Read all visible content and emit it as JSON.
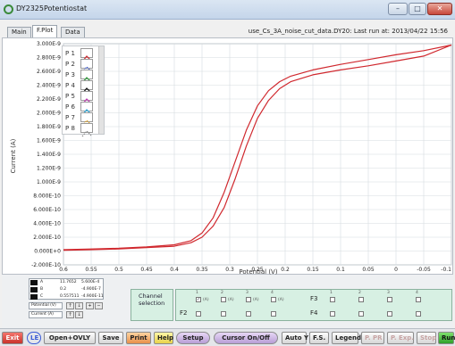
{
  "window": {
    "title": "DY2325Potentiostat",
    "minimize_label": "–",
    "maximize_label": "□",
    "close_label": "✕"
  },
  "tabs": [
    {
      "label": "Main"
    },
    {
      "label": "F.Plot"
    },
    {
      "label": "Data"
    }
  ],
  "active_tab": "F.Plot",
  "file_info": "use_Cs_3A_noise_cut_data.DY20:   Last run at: 2013/04/22   15:56",
  "chart_data": {
    "type": "line",
    "xlabel": "Potential (V)",
    "ylabel": "Current (A)",
    "xlim": [
      0.6,
      -0.1
    ],
    "ylim": [
      -2e-10,
      3e-09
    ],
    "x_ticks": [
      "0.6",
      "0.55",
      "0.5",
      "0.45",
      "0.4",
      "0.35",
      "0.3",
      "0.25",
      "0.2",
      "0.15",
      "0.1",
      "0.05",
      "0",
      "-0.05",
      "-0.1"
    ],
    "y_ticks": [
      "3.000E-9",
      "2.800E-9",
      "2.600E-9",
      "2.400E-9",
      "2.200E-9",
      "2.000E-9",
      "1.800E-9",
      "1.600E-9",
      "1.400E-9",
      "1.200E-9",
      "1.000E-9",
      "8.000E-10",
      "6.000E-10",
      "4.000E-10",
      "2.000E-10",
      "0.000E+0",
      "-2.000E-10"
    ],
    "grid": true,
    "color": "#d0282e",
    "series": [
      {
        "x": [
          0.6,
          0.55,
          0.5,
          0.45,
          0.4,
          0.37,
          0.35,
          0.33,
          0.31,
          0.29,
          0.27,
          0.25,
          0.23,
          0.21,
          0.19,
          0.15,
          0.1,
          0.05,
          0.0,
          -0.05,
          -0.1
        ],
        "y": [
          2e-11,
          3e-11,
          4e-11,
          6e-11,
          9e-11,
          1.5e-10,
          2.6e-10,
          4.8e-10,
          8.5e-10,
          1.3e-09,
          1.75e-09,
          2.1e-09,
          2.32e-09,
          2.45e-09,
          2.53e-09,
          2.62e-09,
          2.7e-09,
          2.77e-09,
          2.84e-09,
          2.9e-09,
          2.98e-09
        ]
      },
      {
        "x": [
          -0.1,
          -0.05,
          0.0,
          0.05,
          0.1,
          0.15,
          0.19,
          0.21,
          0.23,
          0.25,
          0.27,
          0.29,
          0.31,
          0.33,
          0.35,
          0.37,
          0.4,
          0.45,
          0.5,
          0.55,
          0.6
        ],
        "y": [
          2.98e-09,
          2.82e-09,
          2.75e-09,
          2.68e-09,
          2.62e-09,
          2.55e-09,
          2.45e-09,
          2.35e-09,
          2.18e-09,
          1.92e-09,
          1.52e-09,
          1.05e-09,
          6.3e-10,
          3.6e-10,
          2e-10,
          1.2e-10,
          7e-11,
          5e-11,
          3e-11,
          2e-11,
          1e-11
        ]
      }
    ]
  },
  "plot_legend": [
    {
      "label": "P 1",
      "icon": "red-line-icon",
      "color": "#d0282e"
    },
    {
      "label": "P 2",
      "icon": "blue-dotted-icon",
      "color": "#3b5bd6"
    },
    {
      "label": "P 3",
      "icon": "green-line-icon",
      "color": "#2e9b3a"
    },
    {
      "label": "P 4",
      "icon": "black-line-icon",
      "color": "#111111"
    },
    {
      "label": "P 5",
      "icon": "magenta-line-icon",
      "color": "#c23bb5"
    },
    {
      "label": "P 6",
      "icon": "cyan-line-icon",
      "color": "#2aa6d8"
    },
    {
      "label": "P 7",
      "icon": "orange-dotted-icon",
      "color": "#e0a020"
    },
    {
      "label": "P 8",
      "icon": "gray-dotted-icon",
      "color": "#888888"
    }
  ],
  "channels": [
    {
      "name": "A",
      "v1": "11.7652",
      "v2": "5.600E-4"
    },
    {
      "name": "B",
      "v1": "0.2",
      "v2": "-4.900E-7"
    },
    {
      "name": "C",
      "v1": "0.557511",
      "v2": "-4.900E-11"
    }
  ],
  "x_axis_select": "Potential (V)",
  "y_axis_select": "Current (A)",
  "channel_selection_label": "Channel\nselection",
  "f_panel": {
    "f2_label": "F2",
    "f3_label": "F3",
    "f4_label": "F4",
    "col_labels": [
      "1",
      "2",
      "3",
      "4"
    ],
    "checked_label": "(A)"
  },
  "toolbar": {
    "exit": "Exit",
    "le_badge": "LE",
    "open_ovly": "Open+OVLY",
    "save": "Save",
    "print": "Print",
    "help": "Help",
    "setup": "Setup",
    "cursor": "Cursor On/Off",
    "auto_y": "Auto Y",
    "fs": "F.S.",
    "legend": "Legend",
    "p_pr": "P. PR",
    "p_exp": "P. Exp.",
    "stop": "Stop",
    "run": "Run"
  }
}
